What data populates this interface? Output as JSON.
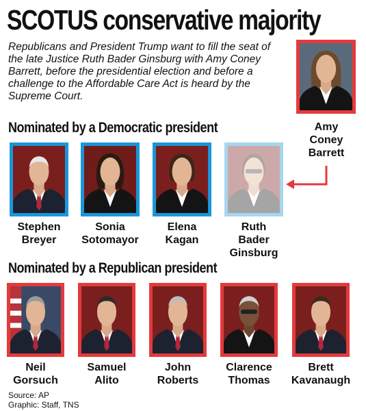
{
  "title": "SCOTUS conservative majority",
  "intro": "Republicans and President Trump want to fill the seat of the late Justice Ruth Bader Ginsburg with Amy Coney Barrett, before the presidential election and before a challenge to the Affordable Care Act is heard by the Supreme Court.",
  "nominee": {
    "first": "Amy",
    "middle": "Coney",
    "last": "Barrett"
  },
  "democratic": {
    "heading": "Nominated by a Democratic president",
    "justices": [
      {
        "line1": "Stephen",
        "line2": "Breyer",
        "line3": ""
      },
      {
        "line1": "Sonia",
        "line2": "Sotomayor",
        "line3": ""
      },
      {
        "line1": "Elena",
        "line2": "Kagan",
        "line3": ""
      },
      {
        "line1": "Ruth",
        "line2": "Bader",
        "line3": "Ginsburg"
      }
    ]
  },
  "republican": {
    "heading": "Nominated by a Republican president",
    "justices": [
      {
        "line1": "Neil",
        "line2": "Gorsuch"
      },
      {
        "line1": "Samuel",
        "line2": "Alito"
      },
      {
        "line1": "John",
        "line2": "Roberts"
      },
      {
        "line1": "Clarence",
        "line2": "Thomas"
      },
      {
        "line1": "Brett",
        "line2": "Kavanaugh"
      }
    ]
  },
  "footer": {
    "source": "Source: AP",
    "graphic": "Graphic: Staff, TNS"
  },
  "colors": {
    "democratic": "#1b96d9",
    "republican": "#e33a3d",
    "arrow": "#e33a3d"
  },
  "icons": {
    "portrait": "person-portrait-icon",
    "arrow": "arrow-left-icon"
  }
}
